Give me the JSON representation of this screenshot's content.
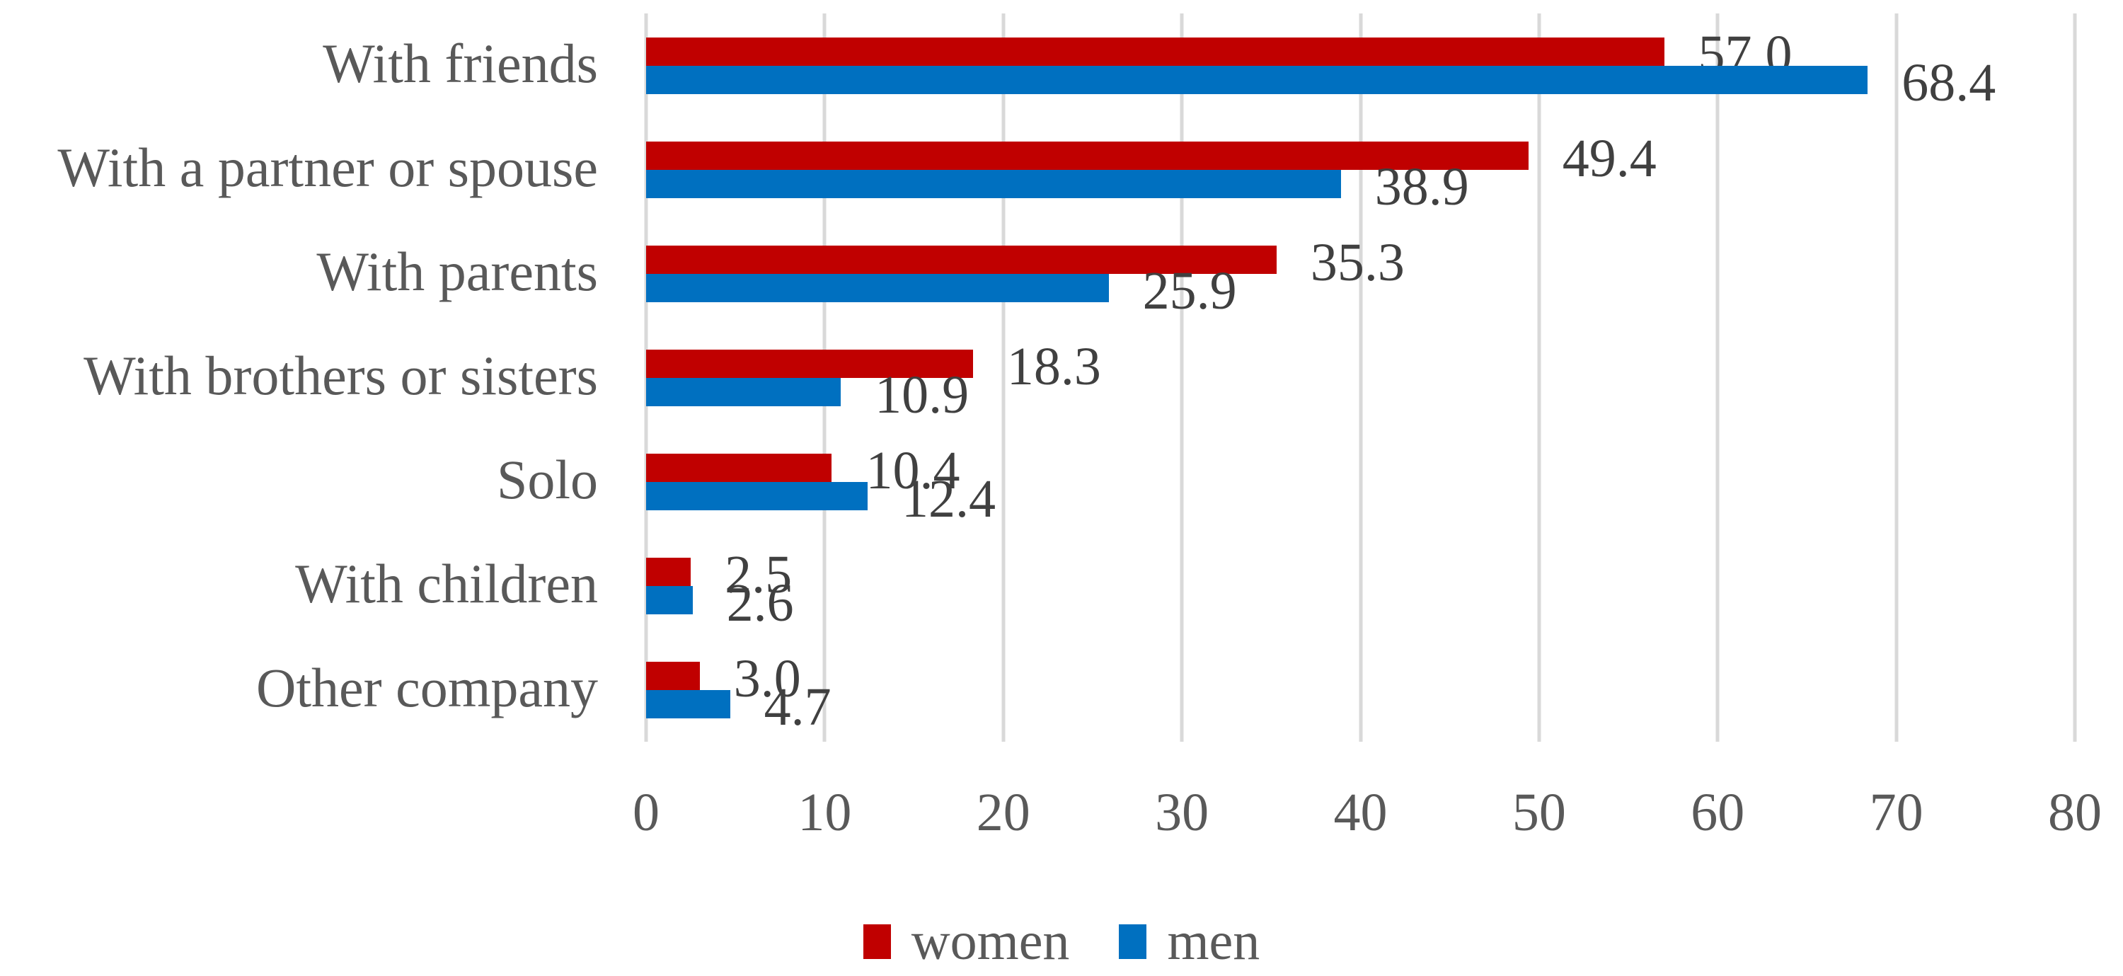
{
  "chart_data": {
    "type": "bar",
    "orientation": "horizontal",
    "title": "",
    "xlabel": "",
    "ylabel": "",
    "categories": [
      "With friends",
      "With a partner or spouse",
      "With parents",
      "With brothers or sisters",
      "Solo",
      "With children",
      "Other company"
    ],
    "series": [
      {
        "name": "women",
        "color": "#C00000",
        "values": [
          57.0,
          49.4,
          35.3,
          18.3,
          10.4,
          2.5,
          3.0
        ]
      },
      {
        "name": "men",
        "color": "#0070C0",
        "values": [
          68.4,
          38.9,
          25.9,
          10.9,
          12.4,
          2.6,
          4.7
        ]
      }
    ],
    "data_labels_visible": true,
    "data_label_decimals": 1,
    "xlim": [
      0,
      80
    ],
    "x_ticks": [
      0,
      10,
      20,
      30,
      40,
      50,
      60,
      70,
      80
    ],
    "grid": true,
    "legend_position": "bottom"
  },
  "style": {
    "background_color": "#FFFFFF",
    "gridline_color": "#D9D9D9",
    "category_text_color": "#595959",
    "axis_text_color": "#595959",
    "legend_text_color": "#595959",
    "data_label_color": "#404040",
    "women_color": "#C00000",
    "men_color": "#0070C0"
  }
}
